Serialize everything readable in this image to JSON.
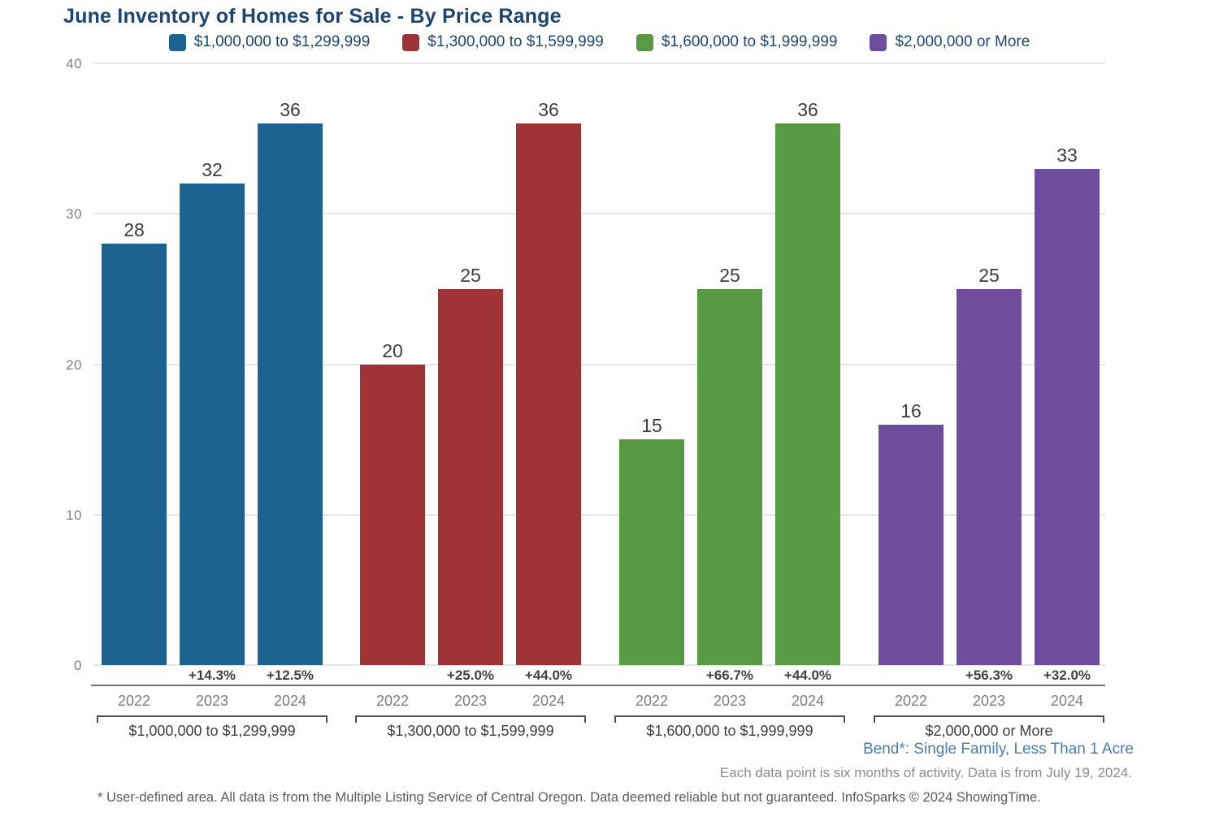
{
  "chart_data": {
    "type": "bar",
    "title": "June Inventory of Homes for Sale - By Price Range",
    "categories": [
      "2022",
      "2023",
      "2024"
    ],
    "series": [
      {
        "name": "$1,000,000 to $1,299,999",
        "color": "#1C6392",
        "values": [
          28,
          32,
          36
        ],
        "pct_changes": [
          null,
          "+14.3%",
          "+12.5%"
        ]
      },
      {
        "name": "$1,300,000 to $1,599,999",
        "color": "#A03336",
        "values": [
          20,
          25,
          36
        ],
        "pct_changes": [
          null,
          "+25.0%",
          "+44.0%"
        ]
      },
      {
        "name": "$1,600,000 to $1,999,999",
        "color": "#579A43",
        "values": [
          15,
          25,
          36
        ],
        "pct_changes": [
          null,
          "+66.7%",
          "+44.0%"
        ]
      },
      {
        "name": "$2,000,000 or More",
        "color": "#6E4D9E",
        "values": [
          16,
          25,
          33
        ],
        "pct_changes": [
          null,
          "+56.3%",
          "+32.0%"
        ]
      }
    ],
    "ylim": [
      0,
      40
    ],
    "yticks": [
      0,
      10,
      20,
      30,
      40
    ],
    "grid": true,
    "legend_position": "top"
  },
  "footer": {
    "area_label": "Bend*: Single Family, Less Than 1 Acre",
    "data_note": "Each data point is six months of activity. Data is from July 19, 2024.",
    "disclaimer": "* User-defined area. All data is from the Multiple Listing Service of Central Oregon. Data deemed reliable but not guaranteed. InfoSparks © 2024 ShowingTime."
  },
  "colors": {
    "title_navy": "#1C4573",
    "footer_blue": "#4A7CAD",
    "gridline": "#e6e6e6",
    "separator": "#6e6e6e"
  }
}
